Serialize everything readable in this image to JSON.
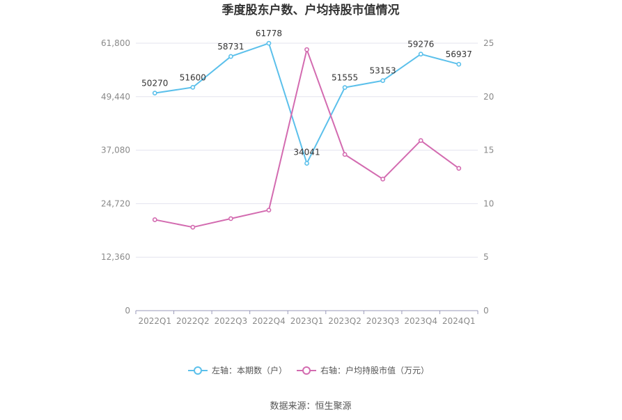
{
  "chart_data": {
    "type": "line",
    "title": "季度股东户数、户均持股市值情况",
    "categories": [
      "2022Q1",
      "2022Q2",
      "2022Q3",
      "2022Q4",
      "2023Q1",
      "2023Q2",
      "2023Q3",
      "2023Q4",
      "2024Q1"
    ],
    "left_axis": {
      "min": 0,
      "max": 61800,
      "ticks": [
        "0",
        "12,360",
        "24,720",
        "37,080",
        "49,440",
        "61,800"
      ]
    },
    "right_axis": {
      "min": 0,
      "max": 25,
      "ticks": [
        "0",
        "5",
        "10",
        "15",
        "20",
        "25"
      ]
    },
    "series": [
      {
        "name": "左轴：本期数（户）",
        "axis": "left",
        "color": "#5bc0eb",
        "values": [
          50270,
          51600,
          58731,
          61778,
          34041,
          51555,
          53153,
          59276,
          56937
        ],
        "labels": [
          "50270",
          "51600",
          "58731",
          "61778",
          "34041",
          "51555",
          "53153",
          "59276",
          "56937"
        ]
      },
      {
        "name": "右轴：户均持股市值（万元）",
        "axis": "right",
        "color": "#d36bb0",
        "values": [
          8.5,
          7.8,
          8.6,
          9.4,
          24.4,
          14.6,
          12.3,
          15.9,
          13.3
        ]
      }
    ],
    "grid": true,
    "legend_position": "bottom",
    "source": "数据来源：恒生聚源"
  }
}
